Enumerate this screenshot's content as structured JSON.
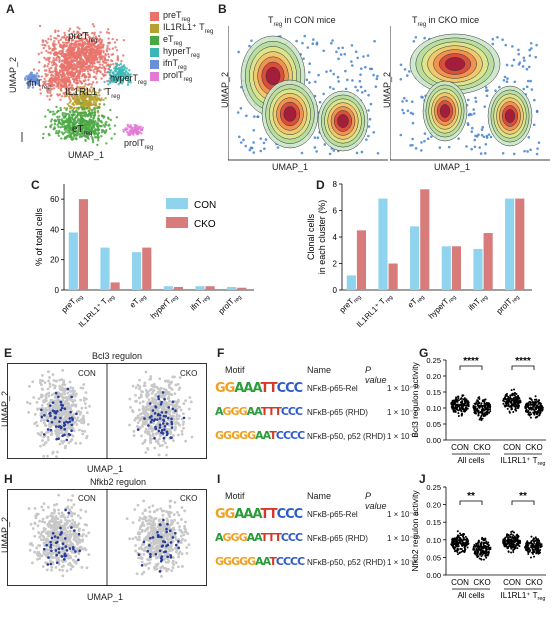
{
  "panels": {
    "A": {
      "letter": "A",
      "xlabel": "UMAP_1",
      "ylabel": "UMAP_2",
      "cluster_labels": [
        "preT",
        "IL1RL1⁺ T",
        "eT",
        "hyperT",
        "ifnT",
        "prolT"
      ],
      "legend": [
        {
          "label": "preT",
          "sub": "reg",
          "color": "#e8736b"
        },
        {
          "label": "IL1RL1⁺ T",
          "sub": "reg",
          "color": "#b5a130"
        },
        {
          "label": "eT",
          "sub": "reg",
          "color": "#4aa843"
        },
        {
          "label": "hyperT",
          "sub": "reg",
          "color": "#3bb8b6"
        },
        {
          "label": "ifnT",
          "sub": "reg",
          "color": "#6a8ed8"
        },
        {
          "label": "prolT",
          "sub": "reg",
          "color": "#e37ad6"
        }
      ]
    },
    "B": {
      "letter": "B",
      "xlabel": "UMAP_1",
      "ylabel": "UMAP_2",
      "left_title": "T",
      "left_title_sub": "reg",
      "left_title_rest": " in CON mice",
      "right_title": "T",
      "right_title_sub": "reg",
      "right_title_rest": " in CKO mice"
    },
    "C": {
      "letter": "C"
    },
    "D": {
      "letter": "D"
    },
    "E": {
      "letter": "E",
      "title": "Bcl3 regulon",
      "con": "CON",
      "cko": "CKO",
      "xlabel": "UMAP_1",
      "ylabel": "UMAP_2"
    },
    "F": {
      "letter": "F",
      "headers": {
        "motif": "Motif",
        "name": "Name",
        "p": "P value"
      },
      "rows": [
        {
          "motif": "GGAAATTCCC",
          "name": "NFκB-p65-Rel",
          "p": "1 × 10⁻¹⁰"
        },
        {
          "motif": "AGGGAATTTCCC",
          "name": "NFκB-p65 (RHD)",
          "p": "1 × 10⁻⁴"
        },
        {
          "motif": "GGGGGAATCCCC",
          "name": "NFκB-p50, p52 (RHD)",
          "p": "1 × 10⁻⁴"
        }
      ]
    },
    "G": {
      "letter": "G",
      "ylabel": "Bcl3 regulon activity",
      "sig": [
        "****",
        "****"
      ],
      "groups": [
        "CON",
        "CKO",
        "CON",
        "CKO"
      ],
      "group_labels": [
        "All cells",
        "IL1RL1⁺ T"
      ],
      "group_sub": "reg",
      "ticks": [
        "0.00",
        "0.05",
        "0.10",
        "0.15",
        "0.20",
        "0.25"
      ]
    },
    "H": {
      "letter": "H",
      "title": "Nfkb2 regulon",
      "con": "CON",
      "cko": "CKO",
      "xlabel": "UMAP_1",
      "ylabel": "UMAP_2"
    },
    "I": {
      "letter": "I",
      "headers": {
        "motif": "Motif",
        "name": "Name",
        "p": "P value"
      },
      "rows": [
        {
          "motif": "GGAAATTCCC",
          "name": "NFκB-p65-Rel",
          "p": "1 × 10⁻¹¹"
        },
        {
          "motif": "AGGGAATTTCCC",
          "name": "NFκB-p65 (RHD)",
          "p": "1 × 10⁻⁸"
        },
        {
          "motif": "GGGGGAATCCCC",
          "name": "NFκB-p50, p52 (RHD)",
          "p": "1 × 10⁻⁵"
        }
      ]
    },
    "J": {
      "letter": "J",
      "ylabel": "Nfkb2 regulon activity",
      "sig": [
        "**",
        "**"
      ],
      "groups": [
        "CON",
        "CKO",
        "CON",
        "CKO"
      ],
      "group_labels": [
        "All cells",
        "IL1RL1⁺ T"
      ],
      "group_sub": "reg",
      "ticks": [
        "0.00",
        "0.05",
        "0.10",
        "0.15",
        "0.20",
        "0.25"
      ]
    }
  },
  "chart_data": [
    {
      "type": "bar",
      "panel": "C",
      "ylabel": "% of total cells",
      "ylim": [
        0,
        70
      ],
      "yticks": [
        0,
        20,
        40,
        60
      ],
      "categories": [
        "preT",
        "IL1RL1⁺ T",
        "eT",
        "hyperT",
        "ifnT",
        "prolT"
      ],
      "category_sub": "reg",
      "legend": [
        "CON",
        "CKO"
      ],
      "series": [
        {
          "name": "CON",
          "color": "#8fd3ee",
          "values": [
            38,
            28,
            25,
            2.5,
            2.5,
            2
          ]
        },
        {
          "name": "CKO",
          "color": "#d87b7b",
          "values": [
            60,
            5,
            28,
            2,
            2.5,
            1.5
          ]
        }
      ]
    },
    {
      "type": "bar",
      "panel": "D",
      "ylabel": "Clonal cells in each cluster (%)",
      "ylim": [
        0,
        8
      ],
      "yticks": [
        0,
        2,
        4,
        6,
        8
      ],
      "categories": [
        "preT",
        "IL1RL1⁺ T",
        "eT",
        "hyperT",
        "ifnT",
        "prolT"
      ],
      "category_sub": "reg",
      "series": [
        {
          "name": "CON",
          "color": "#8fd3ee",
          "values": [
            1.1,
            6.9,
            4.8,
            3.3,
            3.1,
            6.9
          ]
        },
        {
          "name": "CKO",
          "color": "#d87b7b",
          "values": [
            4.5,
            2.0,
            7.6,
            3.3,
            4.3,
            6.9
          ]
        }
      ]
    }
  ]
}
